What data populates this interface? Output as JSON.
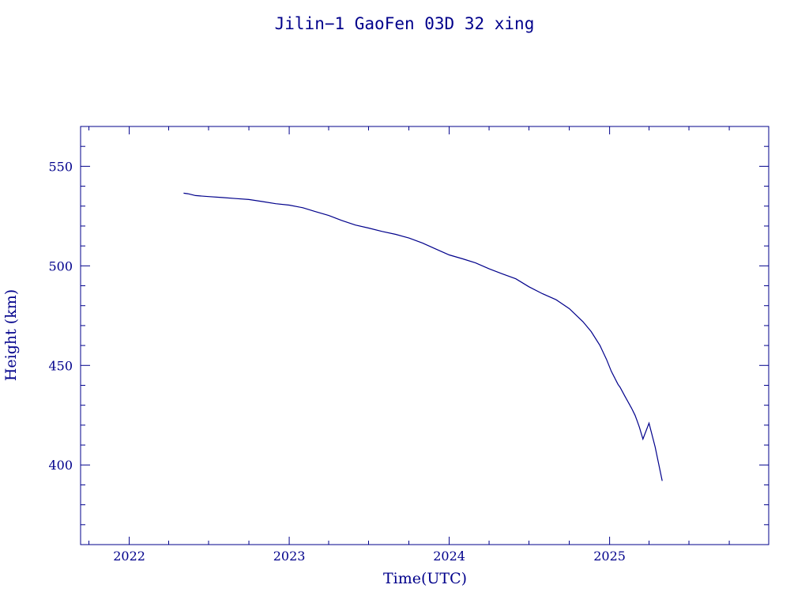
{
  "chart_data": {
    "type": "line",
    "title": "Jilin−1 GaoFen 03D 32 xing",
    "xlabel": "Time(UTC)",
    "ylabel": "Height (km)",
    "xlim": [
      "2021-09-12",
      "2025-12-30"
    ],
    "ylim": [
      360,
      570
    ],
    "x_ticks": [
      "2022",
      "2023",
      "2024",
      "2025"
    ],
    "y_ticks": [
      400,
      450,
      500,
      550
    ],
    "grid": false,
    "color": "#00008b",
    "series": [
      {
        "x": [
          "2022-05-05",
          "2022-05-15",
          "2022-06-01",
          "2022-07-01",
          "2022-08-01",
          "2022-09-01",
          "2022-10-01",
          "2022-11-01",
          "2022-12-01",
          "2023-01-01",
          "2023-02-01",
          "2023-03-01",
          "2023-04-01",
          "2023-05-01",
          "2023-06-01",
          "2023-07-01",
          "2023-08-01",
          "2023-09-01",
          "2023-10-01",
          "2023-11-01",
          "2023-12-01",
          "2024-01-01",
          "2024-02-01",
          "2024-03-01",
          "2024-04-01",
          "2024-05-01",
          "2024-06-01",
          "2024-07-01",
          "2024-08-01",
          "2024-09-01",
          "2024-10-01",
          "2024-11-01",
          "2024-11-20",
          "2024-12-10",
          "2024-12-25",
          "2025-01-05",
          "2025-01-20",
          "2025-01-25",
          "2025-02-05",
          "2025-02-20",
          "2025-02-28",
          "2025-03-05",
          "2025-03-10",
          "2025-03-18",
          "2025-04-01",
          "2025-04-15",
          "2025-05-01"
        ],
        "y": [
          536.5,
          536.2,
          535.3,
          534.8,
          534.3,
          533.8,
          533.3,
          532.3,
          531.2,
          530.5,
          529.2,
          527.3,
          525.3,
          522.8,
          520.5,
          519.0,
          517.3,
          515.8,
          514.0,
          511.5,
          508.5,
          505.5,
          503.5,
          501.5,
          498.5,
          496.0,
          493.5,
          489.5,
          486.0,
          483.0,
          478.5,
          472.0,
          467.0,
          460.0,
          453.0,
          447.0,
          440.5,
          439.0,
          434.5,
          428.5,
          425.0,
          422.0,
          419.0,
          413.0,
          421.0,
          409.0,
          392.0
        ]
      }
    ]
  }
}
